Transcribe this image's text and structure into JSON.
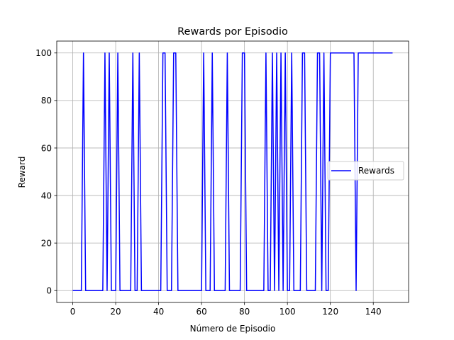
{
  "chart_data": {
    "type": "line",
    "title": "Rewards por Episodio",
    "xlabel": "Número de Episodio",
    "ylabel": "Reward",
    "xlim": [
      -7.45,
      156.45
    ],
    "ylim": [
      -5,
      105
    ],
    "xticks": [
      0,
      20,
      40,
      60,
      80,
      100,
      120,
      140
    ],
    "yticks": [
      0,
      20,
      40,
      60,
      80,
      100
    ],
    "grid": true,
    "legend_position": "center-right",
    "series": [
      {
        "name": "Rewards",
        "color": "#0000ff",
        "high_episodes": [
          5,
          15,
          17,
          21,
          28,
          31,
          42,
          43,
          47,
          48,
          61,
          65,
          72,
          79,
          80,
          90,
          93,
          95,
          97,
          99,
          102,
          107,
          108,
          114,
          115,
          117,
          120,
          121,
          122,
          123,
          124,
          125,
          126,
          127,
          128,
          129,
          130,
          131,
          133,
          134,
          135,
          136,
          137,
          138,
          139,
          140,
          141,
          142,
          143,
          144,
          145,
          146,
          147,
          148,
          149
        ],
        "x_range": [
          0,
          149
        ],
        "high_value": 100,
        "low_value": 0
      }
    ]
  }
}
